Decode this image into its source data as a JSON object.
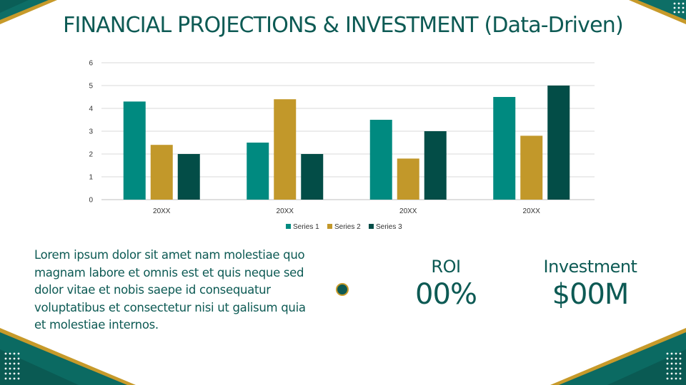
{
  "slide": {
    "title": "FINANCIAL PROJECTIONS & INVESTMENT (Data-Driven)"
  },
  "chart_data": {
    "type": "bar",
    "categories": [
      "20XX",
      "20XX",
      "20XX",
      "20XX"
    ],
    "series": [
      {
        "name": "Series 1",
        "color": "#008a80",
        "values": [
          4.3,
          2.5,
          3.5,
          4.5
        ]
      },
      {
        "name": "Series 2",
        "color": "#c2982a",
        "values": [
          2.4,
          4.4,
          1.8,
          2.8
        ]
      },
      {
        "name": "Series 3",
        "color": "#034d47",
        "values": [
          2,
          2,
          3,
          5
        ]
      }
    ],
    "ylim": [
      0,
      6
    ],
    "yticks": [
      0,
      1,
      2,
      3,
      4,
      5,
      6
    ],
    "title": "",
    "xlabel": "",
    "ylabel": "",
    "grid": true,
    "legend_position": "bottom"
  },
  "description": {
    "text": "Lorem ipsum dolor sit amet nam molestiae quo magnam labore et omnis est et quis neque sed dolor vitae et nobis saepe id consequatur voluptatibus et consectetur nisi ut galisum quia et molestiae internos."
  },
  "metrics": {
    "roi": {
      "label": "ROI",
      "value": "00%"
    },
    "investment": {
      "label": "Investment",
      "value": "$00M"
    }
  },
  "colors": {
    "teal_dark": "#0d5a54",
    "teal": "#008a80",
    "gold": "#c2982a"
  }
}
